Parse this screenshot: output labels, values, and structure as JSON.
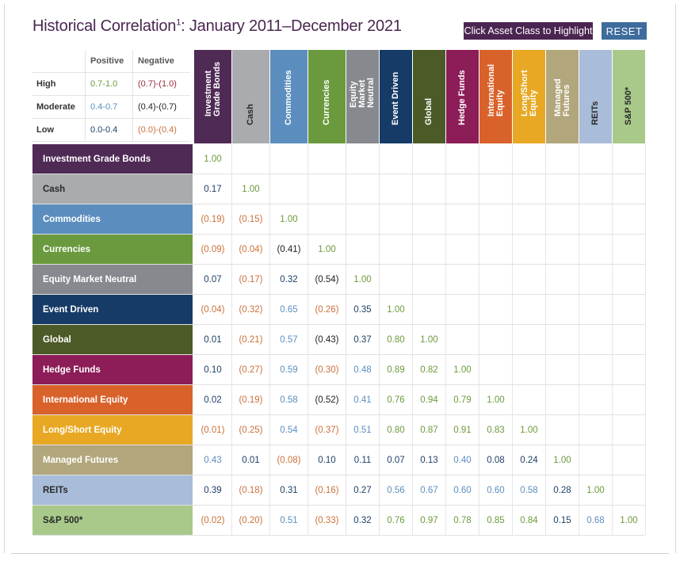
{
  "title": {
    "main": "Historical Correlation",
    "sup": "1",
    "range": ": January 2011–December 2021"
  },
  "buttons": {
    "highlight": "Click Asset Class to Highlight",
    "reset": "RESET"
  },
  "legend": {
    "headers": [
      "Positive",
      "Negative"
    ],
    "rows": [
      {
        "label": "High",
        "positive": "0.7-1.0",
        "negative": "(0.7)-(1.0)"
      },
      {
        "label": "Moderate",
        "positive": "0.4-0.7",
        "negative": "(0.4)-(0.7)"
      },
      {
        "label": "Low",
        "positive": "0.0-0.4",
        "negative": "(0.0)-(0.4)"
      }
    ]
  },
  "colors": {
    "high_pos": "#6d9a3c",
    "mod_pos": "#5b8ebf",
    "low_pos": "#1d3f66",
    "high_neg": "#9c2a3a",
    "mod_neg": "#222222",
    "low_neg": "#c9713b"
  },
  "assets": [
    {
      "name": "Investment Grade Bonds",
      "col_label": "Investment\nGrade Bonds",
      "color": "#4f2a55",
      "dark_text": false
    },
    {
      "name": "Cash",
      "col_label": "Cash",
      "color": "#a9abae",
      "dark_text": true
    },
    {
      "name": "Commodities",
      "col_label": "Commodities",
      "color": "#5b8ebf",
      "dark_text": false
    },
    {
      "name": "Currencies",
      "col_label": "Currencies",
      "color": "#6a9a3d",
      "dark_text": false
    },
    {
      "name": "Equity Market Neutral",
      "col_label": "Equity\nMarket\nNeutral",
      "color": "#86898d",
      "dark_text": false
    },
    {
      "name": "Event Driven",
      "col_label": "Event Driven",
      "color": "#163b67",
      "dark_text": false
    },
    {
      "name": "Global",
      "col_label": "Global",
      "color": "#4c5a28",
      "dark_text": false
    },
    {
      "name": "Hedge Funds",
      "col_label": "Hedge Funds",
      "color": "#8c1d58",
      "dark_text": false
    },
    {
      "name": "International Equity",
      "col_label": "International\nEquity",
      "color": "#d9622b",
      "dark_text": false
    },
    {
      "name": "Long/Short Equity",
      "col_label": "Long/Short\nEquity",
      "color": "#e8a823",
      "dark_text": false
    },
    {
      "name": "Managed Futures",
      "col_label": "Managed\nFutures",
      "color": "#b2a67c",
      "dark_text": false
    },
    {
      "name": "REITs",
      "col_label": "REITs",
      "color": "#a9bcd9",
      "dark_text": true
    },
    {
      "name": "S&P 500*",
      "col_label": "S&P 500*",
      "color": "#a8c98a",
      "dark_text": true
    }
  ],
  "matrix": [
    [
      "1.00"
    ],
    [
      "0.17",
      "1.00"
    ],
    [
      "(0.19)",
      "(0.15)",
      "1.00"
    ],
    [
      "(0.09)",
      "(0.04)",
      "(0.41)",
      "1.00"
    ],
    [
      "0.07",
      "(0.17)",
      "0.32",
      "(0.54)",
      "1.00"
    ],
    [
      "(0.04)",
      "(0.32)",
      "0.65",
      "(0.26)",
      "0.35",
      "1.00"
    ],
    [
      "0.01",
      "(0.21)",
      "0.57",
      "(0.43)",
      "0.37",
      "0.80",
      "1.00"
    ],
    [
      "0.10",
      "(0.27)",
      "0.59",
      "(0.30)",
      "0.48",
      "0.89",
      "0.82",
      "1.00"
    ],
    [
      "0.02",
      "(0.19)",
      "0.58",
      "(0.52)",
      "0.41",
      "0.76",
      "0.94",
      "0.79",
      "1.00"
    ],
    [
      "(0.01)",
      "(0.25)",
      "0.54",
      "(0.37)",
      "0.51",
      "0.80",
      "0.87",
      "0.91",
      "0.83",
      "1.00"
    ],
    [
      "0.43",
      "0.01",
      "(0.08)",
      "0.10",
      "0.11",
      "0.07",
      "0.13",
      "0.40",
      "0.08",
      "0.24",
      "1.00"
    ],
    [
      "0.39",
      "(0.18)",
      "0.31",
      "(0.16)",
      "0.27",
      "0.56",
      "0.67",
      "0.60",
      "0.60",
      "0.58",
      "0.28",
      "1.00"
    ],
    [
      "(0.02)",
      "(0.20)",
      "0.51",
      "(0.33)",
      "0.32",
      "0.76",
      "0.97",
      "0.78",
      "0.85",
      "0.84",
      "0.15",
      "0.68",
      "1.00"
    ]
  ]
}
